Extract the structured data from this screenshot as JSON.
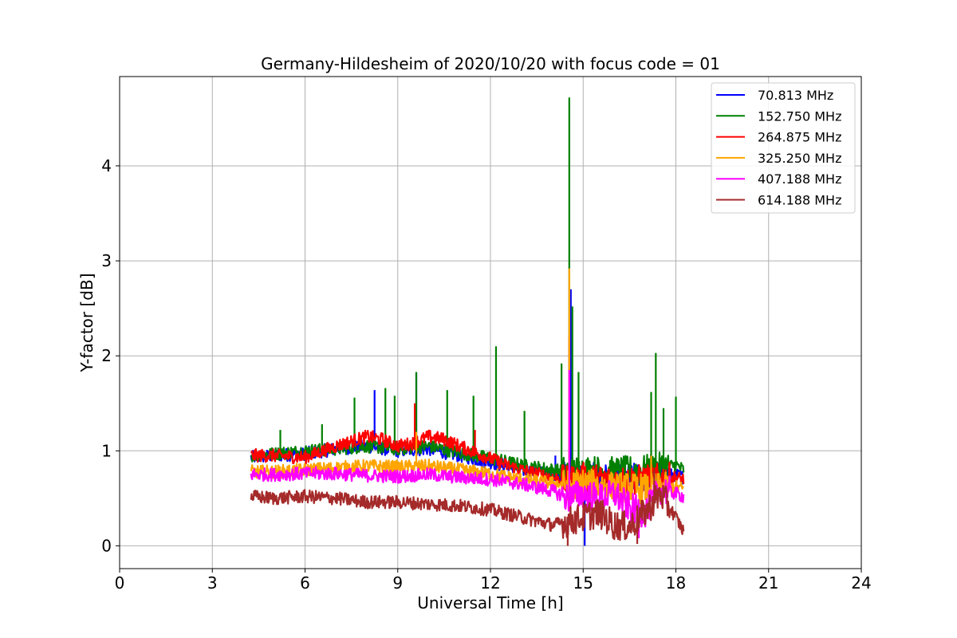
{
  "chart_data": {
    "type": "line",
    "title": "Germany-Hildesheim of 2020/10/20 with focus code = 01",
    "xlabel": "Universal Time [h]",
    "ylabel": "Y-factor [dB]",
    "xlim": [
      0,
      24
    ],
    "ylim": [
      -0.24,
      4.94
    ],
    "xticks": [
      0,
      3,
      6,
      9,
      12,
      15,
      18,
      21,
      24
    ],
    "yticks": [
      0,
      1,
      2,
      3,
      4
    ],
    "grid": true,
    "legend_position": "top-right",
    "series": [
      {
        "name": " 70.813 MHz",
        "color": "#0000ff",
        "x": [
          4.25,
          5.0,
          6.0,
          7.0,
          8.0,
          9.0,
          10.0,
          11.0,
          12.0,
          13.0,
          14.0,
          14.5,
          15.0,
          16.0,
          17.0,
          18.0,
          18.25
        ],
        "values": [
          0.93,
          0.95,
          0.97,
          1.02,
          1.05,
          1.0,
          1.02,
          0.95,
          0.88,
          0.8,
          0.75,
          0.72,
          0.73,
          0.7,
          0.72,
          0.75,
          0.72
        ],
        "spikes": [
          [
            8.25,
            1.64
          ],
          [
            9.6,
            1.82
          ],
          [
            14.1,
            0.95
          ],
          [
            14.6,
            2.7
          ],
          [
            15.05,
            0.0
          ]
        ]
      },
      {
        "name": "152.750 MHz",
        "color": "#008000",
        "x": [
          4.25,
          5.0,
          6.0,
          7.0,
          8.0,
          9.0,
          10.0,
          11.0,
          12.0,
          13.0,
          14.0,
          14.5,
          15.0,
          16.0,
          17.0,
          18.0,
          18.25
        ],
        "values": [
          0.95,
          0.97,
          1.0,
          1.02,
          1.05,
          1.02,
          1.05,
          0.98,
          0.92,
          0.85,
          0.8,
          0.78,
          0.8,
          0.78,
          0.8,
          0.85,
          0.8
        ],
        "spikes": [
          [
            5.2,
            1.22
          ],
          [
            6.55,
            1.28
          ],
          [
            7.6,
            1.56
          ],
          [
            8.6,
            1.66
          ],
          [
            8.9,
            1.58
          ],
          [
            9.6,
            1.83
          ],
          [
            10.6,
            1.64
          ],
          [
            11.45,
            1.58
          ],
          [
            12.18,
            2.1
          ],
          [
            13.1,
            1.42
          ],
          [
            14.3,
            1.92
          ],
          [
            14.55,
            4.72
          ],
          [
            14.65,
            2.52
          ],
          [
            14.85,
            1.83
          ],
          [
            17.2,
            1.62
          ],
          [
            17.35,
            2.03
          ],
          [
            17.6,
            1.45
          ],
          [
            18.0,
            1.57
          ]
        ]
      },
      {
        "name": "264.875 MHz",
        "color": "#ff0000",
        "x": [
          4.25,
          5.0,
          6.0,
          7.0,
          7.5,
          8.0,
          8.5,
          9.0,
          9.5,
          10.0,
          10.5,
          11.0,
          11.5,
          12.0,
          12.5,
          13.0,
          14.0,
          14.5,
          15.0,
          16.0,
          17.0,
          18.0,
          18.25
        ],
        "values": [
          0.95,
          0.95,
          0.93,
          1.05,
          1.1,
          1.15,
          1.12,
          1.05,
          1.08,
          1.15,
          1.12,
          1.05,
          0.98,
          0.92,
          0.85,
          0.8,
          0.72,
          0.68,
          0.72,
          0.68,
          0.7,
          0.72,
          0.7
        ],
        "spikes": [
          [
            9.55,
            1.5
          ],
          [
            11.5,
            1.22
          ],
          [
            14.55,
            2.2
          ]
        ]
      },
      {
        "name": "325.250 MHz",
        "color": "#ffa500",
        "x": [
          4.25,
          5.0,
          6.0,
          7.0,
          8.0,
          9.0,
          10.0,
          11.0,
          12.0,
          13.0,
          14.0,
          14.5,
          15.0,
          16.0,
          17.0,
          18.0,
          18.25
        ],
        "values": [
          0.78,
          0.78,
          0.8,
          0.82,
          0.84,
          0.83,
          0.84,
          0.8,
          0.76,
          0.7,
          0.66,
          0.64,
          0.66,
          0.62,
          0.6,
          0.62,
          0.6
        ],
        "spikes": [
          [
            14.55,
            2.92
          ],
          [
            17.2,
            0.95
          ],
          [
            9.6,
            1.2
          ]
        ]
      },
      {
        "name": "407.188 MHz",
        "color": "#ff00ff",
        "x": [
          4.25,
          5.0,
          6.0,
          7.0,
          8.0,
          9.0,
          10.0,
          11.0,
          12.0,
          13.0,
          14.0,
          14.5,
          15.0,
          15.5,
          16.0,
          16.5,
          17.0,
          17.5,
          18.0,
          18.25
        ],
        "values": [
          0.75,
          0.75,
          0.76,
          0.76,
          0.74,
          0.73,
          0.75,
          0.72,
          0.7,
          0.65,
          0.58,
          0.5,
          0.55,
          0.5,
          0.55,
          0.4,
          0.35,
          0.6,
          0.55,
          0.52
        ],
        "spikes": [
          [
            14.55,
            1.85
          ],
          [
            16.8,
            0.08
          ]
        ]
      },
      {
        "name": "614.188 MHz",
        "color": "#a52a2a",
        "x": [
          4.25,
          5.0,
          6.0,
          7.0,
          8.0,
          9.0,
          10.0,
          11.0,
          12.0,
          13.0,
          14.0,
          14.5,
          15.0,
          15.5,
          16.0,
          16.5,
          17.0,
          17.5,
          18.0,
          18.25
        ],
        "values": [
          0.52,
          0.5,
          0.52,
          0.5,
          0.46,
          0.46,
          0.44,
          0.42,
          0.38,
          0.3,
          0.22,
          0.25,
          0.3,
          0.35,
          0.22,
          0.2,
          0.35,
          0.55,
          0.3,
          0.15
        ],
        "spikes": [
          [
            14.5,
            0.0
          ],
          [
            16.75,
            0.02
          ],
          [
            17.3,
            0.8
          ]
        ]
      }
    ]
  }
}
